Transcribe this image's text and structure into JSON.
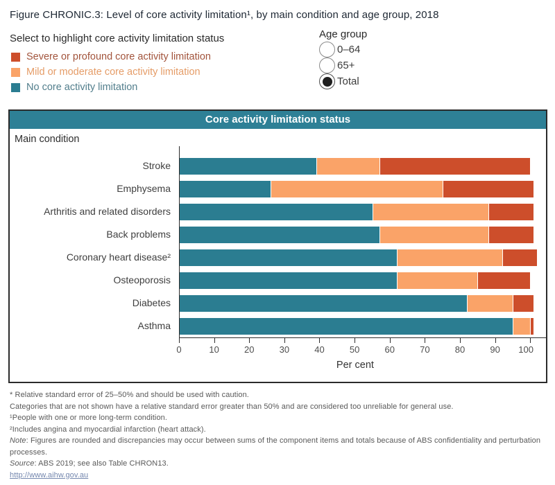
{
  "title": "Figure CHRONIC.3: Level of core activity limitation¹, by main condition and age group, 2018",
  "legend": {
    "heading": "Select to highlight core activity limitation status",
    "items": [
      {
        "label": "Severe or profound core activity limitation",
        "color": "#cd4e2b",
        "text_color": "#a2543c"
      },
      {
        "label": "Mild or moderate core activity limitation",
        "color": "#faa368",
        "text_color": "#e59c67"
      },
      {
        "label": "No core activity limitation",
        "color": "#2b7d91",
        "text_color": "#527e8c"
      }
    ]
  },
  "age_group": {
    "heading": "Age group",
    "options": [
      {
        "label": "0–64",
        "selected": false
      },
      {
        "label": "65+",
        "selected": false
      },
      {
        "label": "Total",
        "selected": true
      }
    ]
  },
  "panel": {
    "header": "Core activity limitation status",
    "header_bg": "#2e8096",
    "row_axis_label": "Main condition"
  },
  "chart_data": {
    "type": "bar",
    "orientation": "horizontal",
    "stacked": true,
    "title": "Core activity limitation status",
    "categories": [
      "Stroke",
      "Emphysema",
      "Arthritis and related disorders",
      "Back problems",
      "Coronary heart disease²",
      "Osteoporosis",
      "Diabetes",
      "Asthma"
    ],
    "series": [
      {
        "key": "no-limitation",
        "name": "No core activity limitation",
        "color": "#2b7d91",
        "values": [
          39,
          26,
          55,
          57,
          62,
          62,
          82,
          95
        ]
      },
      {
        "key": "mild-moderate",
        "name": "Mild or moderate core activity limitation",
        "color": "#faa368",
        "values": [
          18,
          49,
          33,
          31,
          30,
          23,
          13,
          5
        ]
      },
      {
        "key": "severe-profound",
        "name": "Severe or profound core activity limitation",
        "color": "#cd4e2b",
        "values": [
          43,
          26,
          13,
          13,
          10,
          15,
          6,
          1
        ]
      }
    ],
    "xlabel": "Per cent",
    "ylabel": "Main condition",
    "x_ticks": [
      0,
      10,
      20,
      30,
      40,
      50,
      60,
      70,
      80,
      90,
      100
    ],
    "xlim": [
      0,
      104.5
    ],
    "grid": false,
    "legend_position": "top-left"
  },
  "footnotes": [
    "* Relative standard error of 25–50% and should be used with caution.",
    "Categories that are not shown have a relative standard error greater than 50% and are considered too unreliable for general use.",
    "¹People with one or more long-term condition.",
    "²Includes angina and myocardial infarction (heart attack)."
  ],
  "note": {
    "label": "Note",
    "text": ": Figures are rounded and discrepancies may occur between sums of the component items and totals because of ABS confidentiality and perturbation processes."
  },
  "source": {
    "label": "Source",
    "text": ": ABS 2019; see also Table CHRON13."
  },
  "link": "http://www.aihw.gov.au"
}
